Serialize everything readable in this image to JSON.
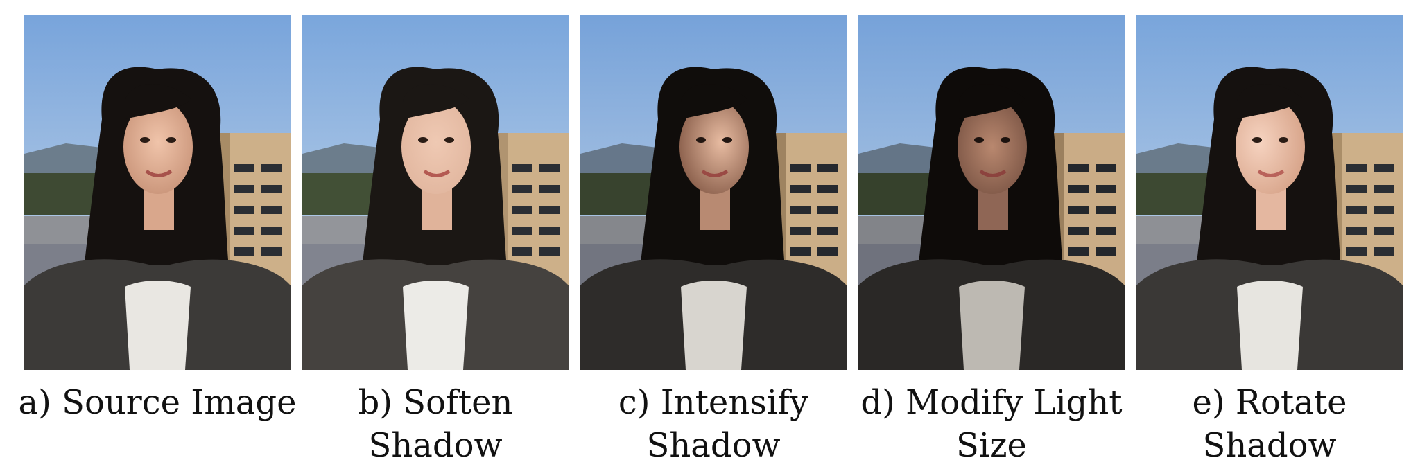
{
  "figure": {
    "panels": [
      {
        "id": "a",
        "caption": "a) Source Image",
        "variant": "source"
      },
      {
        "id": "b",
        "caption": "b) Soften Shadow",
        "variant": "soften"
      },
      {
        "id": "c",
        "caption": "c) Intensify Shadow",
        "variant": "intensify"
      },
      {
        "id": "d",
        "caption": "d) Modify Light Size",
        "variant": "light-size"
      },
      {
        "id": "e",
        "caption": "e) Rotate Shadow",
        "variant": "rotate"
      }
    ]
  },
  "colors": {
    "sky_top": "#7aa6dc",
    "sky_bottom": "#c9d9ea",
    "hair": "#15110f",
    "skin": "#e3b49b",
    "sweater": "#3c3a38",
    "shirt": "#e9e7e2",
    "building": "#cdb089",
    "building_dark": "#2b2e33",
    "mountain": "#6c7d8c",
    "trees": "#3e4a33"
  }
}
